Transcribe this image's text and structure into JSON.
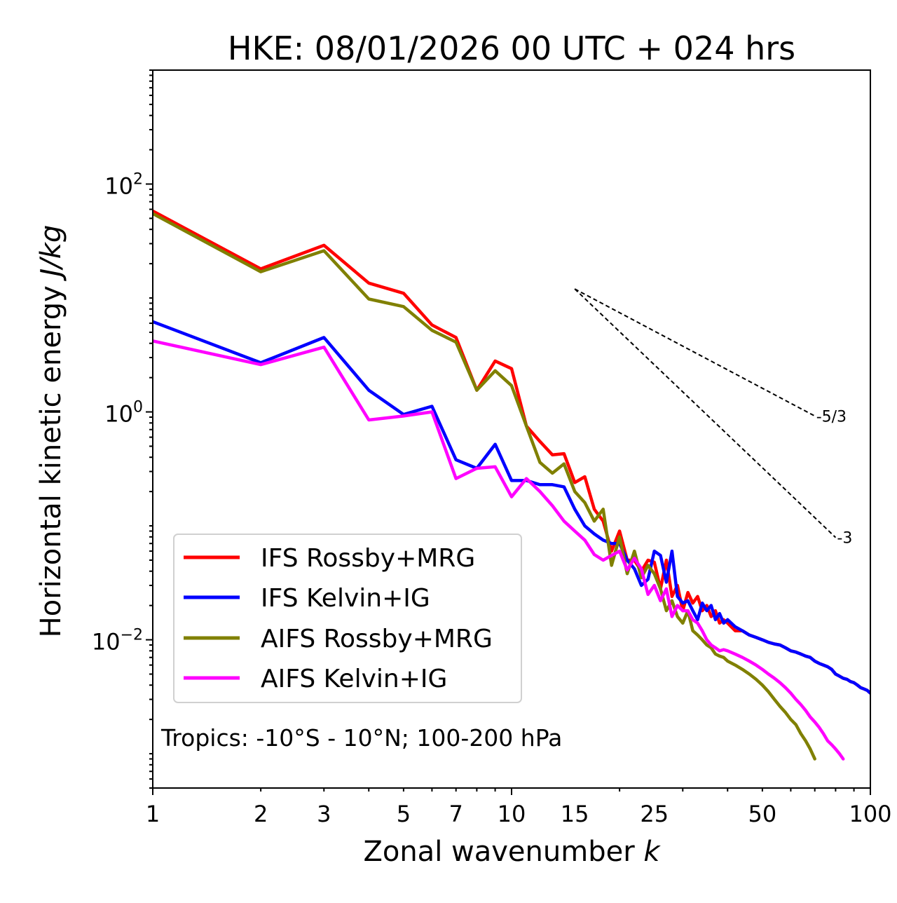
{
  "chart_data": {
    "type": "line",
    "title": "HKE: 08/01/2026 00 UTC + 024 hrs",
    "xlabel": "Zonal wavenumber",
    "xlabel_var": "k",
    "ylabel": "Horizontal kinetic energy",
    "ylabel_units": "J/kg",
    "xscale": "log",
    "yscale": "log",
    "xlim": [
      1,
      100
    ],
    "ylim": [
      0.0005,
      1000
    ],
    "x_ticks": [
      1,
      2,
      3,
      5,
      7,
      10,
      15,
      25,
      50,
      100
    ],
    "x_tick_labels": [
      "1",
      "2",
      "3",
      "5",
      "7",
      "10",
      "15",
      "25",
      "50",
      "100"
    ],
    "y_ticks": [
      {
        "value": 0.01,
        "base": "10",
        "exp": "−2"
      },
      {
        "value": 1,
        "base": "10",
        "exp": "0"
      },
      {
        "value": 100,
        "base": "10",
        "exp": "2"
      }
    ],
    "legend_position": "lower-left",
    "annotation": "Tropics: -10°S - 10°N; 100-200 hPa",
    "reference_lines": [
      {
        "label": "-5/3",
        "slope": -1.6667,
        "x_start": 15,
        "y_start": 12,
        "x_end": 70
      },
      {
        "label": "-3",
        "slope": -3,
        "x_start": 15,
        "y_start": 12,
        "x_end": 80
      }
    ],
    "series": [
      {
        "name": "IFS Rossby+MRG",
        "color": "#ff0000",
        "x": [
          1,
          2,
          3,
          4,
          5,
          6,
          7,
          8,
          9,
          10,
          11,
          12,
          13,
          14,
          15,
          16,
          17,
          18,
          19,
          20,
          21,
          22,
          23,
          24,
          25,
          26,
          27,
          28,
          29,
          30,
          31,
          32,
          33,
          34,
          35,
          36,
          37,
          38,
          39,
          40,
          42,
          44,
          46,
          48,
          50,
          52,
          54,
          56,
          58,
          60,
          62,
          64,
          66,
          68,
          70,
          72,
          74,
          76,
          78,
          80,
          82,
          84,
          86,
          88,
          90,
          92,
          94,
          96,
          98,
          100
        ],
        "y": [
          58,
          18,
          29,
          13.5,
          11,
          5.8,
          4.5,
          1.55,
          2.8,
          2.4,
          0.75,
          0.55,
          0.42,
          0.43,
          0.24,
          0.27,
          0.14,
          0.11,
          0.06,
          0.09,
          0.05,
          0.05,
          0.04,
          0.05,
          0.048,
          0.028,
          0.05,
          0.024,
          0.03,
          0.018,
          0.026,
          0.021,
          0.024,
          0.018,
          0.02,
          0.016,
          0.018,
          0.014,
          0.015,
          0.014,
          0.012,
          0.012,
          0.011,
          0.0105,
          0.01,
          0.0095,
          0.0092,
          0.009,
          0.0085,
          0.008,
          0.0078,
          0.0075,
          0.0072,
          0.007,
          0.0065,
          0.0062,
          0.006,
          0.0058,
          0.0055,
          0.005,
          0.0048,
          0.0046,
          0.0045,
          0.0043,
          0.0042,
          0.004,
          0.0038,
          0.0037,
          0.0036,
          0.0034
        ]
      },
      {
        "name": "IFS Kelvin+IG",
        "color": "#0000ff",
        "x": [
          1,
          2,
          3,
          4,
          5,
          6,
          7,
          8,
          9,
          10,
          11,
          12,
          13,
          14,
          15,
          16,
          17,
          18,
          19,
          20,
          21,
          22,
          23,
          24,
          25,
          26,
          27,
          28,
          29,
          30,
          31,
          32,
          33,
          34,
          35,
          36,
          37,
          38,
          39,
          40,
          42,
          44,
          46,
          48,
          50,
          52,
          54,
          56,
          58,
          60,
          62,
          64,
          66,
          68,
          70,
          72,
          74,
          76,
          78,
          80,
          82,
          84,
          86,
          88,
          90,
          92,
          94,
          96,
          98,
          100
        ],
        "y": [
          6.2,
          2.7,
          4.5,
          1.55,
          0.95,
          1.12,
          0.38,
          0.32,
          0.52,
          0.25,
          0.25,
          0.23,
          0.23,
          0.22,
          0.14,
          0.1,
          0.085,
          0.075,
          0.07,
          0.07,
          0.05,
          0.042,
          0.03,
          0.034,
          0.06,
          0.055,
          0.032,
          0.06,
          0.024,
          0.021,
          0.022,
          0.018,
          0.015,
          0.021,
          0.018,
          0.02,
          0.015,
          0.017,
          0.014,
          0.015,
          0.013,
          0.012,
          0.011,
          0.0105,
          0.01,
          0.0095,
          0.0092,
          0.009,
          0.0085,
          0.008,
          0.0078,
          0.0075,
          0.0072,
          0.007,
          0.0065,
          0.0062,
          0.006,
          0.0058,
          0.0055,
          0.005,
          0.0048,
          0.0046,
          0.0045,
          0.0043,
          0.0042,
          0.004,
          0.0038,
          0.0037,
          0.0036,
          0.0034
        ]
      },
      {
        "name": "AIFS Rossby+MRG",
        "color": "#808000",
        "x": [
          1,
          2,
          3,
          4,
          5,
          6,
          7,
          8,
          9,
          10,
          11,
          12,
          13,
          14,
          15,
          16,
          17,
          18,
          19,
          20,
          21,
          22,
          23,
          24,
          25,
          26,
          27,
          28,
          29,
          30,
          31,
          32,
          33,
          34,
          35,
          36,
          37,
          38,
          39,
          40,
          42,
          44,
          46,
          48,
          50,
          52,
          54,
          56,
          58,
          60,
          62,
          64,
          66,
          68,
          70
        ],
        "y": [
          55,
          17,
          26,
          9.8,
          8.4,
          5.2,
          4.1,
          1.55,
          2.3,
          1.7,
          0.75,
          0.36,
          0.29,
          0.35,
          0.2,
          0.16,
          0.11,
          0.14,
          0.045,
          0.08,
          0.038,
          0.06,
          0.035,
          0.045,
          0.038,
          0.028,
          0.018,
          0.022,
          0.016,
          0.014,
          0.018,
          0.012,
          0.011,
          0.01,
          0.009,
          0.0085,
          0.0075,
          0.0072,
          0.007,
          0.0065,
          0.006,
          0.0055,
          0.005,
          0.0045,
          0.004,
          0.0035,
          0.003,
          0.0026,
          0.0023,
          0.002,
          0.0018,
          0.0015,
          0.0013,
          0.0011,
          0.0009
        ]
      },
      {
        "name": "AIFS Kelvin+IG",
        "color": "#ff00ff",
        "x": [
          1,
          2,
          3,
          4,
          5,
          6,
          7,
          8,
          9,
          10,
          11,
          12,
          13,
          14,
          15,
          16,
          17,
          18,
          19,
          20,
          21,
          22,
          23,
          24,
          25,
          26,
          27,
          28,
          29,
          30,
          31,
          32,
          33,
          34,
          35,
          36,
          37,
          38,
          39,
          40,
          42,
          44,
          46,
          48,
          50,
          52,
          54,
          56,
          58,
          60,
          62,
          64,
          66,
          68,
          70,
          72,
          74,
          76,
          78,
          80,
          82,
          84
        ],
        "y": [
          4.2,
          2.6,
          3.7,
          0.85,
          0.92,
          1.0,
          0.26,
          0.32,
          0.33,
          0.18,
          0.26,
          0.2,
          0.15,
          0.11,
          0.09,
          0.075,
          0.056,
          0.05,
          0.055,
          0.06,
          0.041,
          0.052,
          0.042,
          0.025,
          0.03,
          0.022,
          0.028,
          0.016,
          0.02,
          0.018,
          0.018,
          0.015,
          0.014,
          0.012,
          0.01,
          0.009,
          0.0085,
          0.008,
          0.0082,
          0.008,
          0.0075,
          0.007,
          0.0065,
          0.006,
          0.0055,
          0.005,
          0.0046,
          0.0042,
          0.0038,
          0.0034,
          0.003,
          0.0027,
          0.0024,
          0.0021,
          0.0019,
          0.0017,
          0.0015,
          0.0013,
          0.0012,
          0.0011,
          0.001,
          0.0009
        ]
      }
    ]
  }
}
